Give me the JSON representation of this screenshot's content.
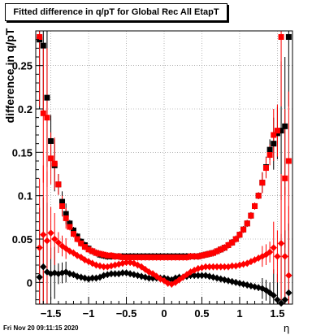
{
  "timestamp": "Fri Nov 20 09:11:15 2020",
  "chart_data": {
    "type": "scatter",
    "title": "Fitted difference in q/pT for Global Rec All EtapT",
    "xlabel": "η",
    "ylabel": "difference in q/pT",
    "xlim": [
      -1.7,
      1.7
    ],
    "ylim": [
      -0.025,
      0.29
    ],
    "xticks": [
      -1.5,
      -1,
      -0.5,
      0,
      0.5,
      1,
      1.5
    ],
    "xtick_labels": [
      "−1.5",
      "−1",
      "−0.5",
      "0",
      "0.5",
      "1",
      "1.5"
    ],
    "yticks": [
      0,
      0.05,
      0.1,
      0.15,
      0.2,
      0.25
    ],
    "ytick_labels": [
      "0",
      "0.05",
      "0.1",
      "0.15",
      "0.2",
      "0.25"
    ],
    "grid": true,
    "colors": {
      "black": "#000000",
      "red": "#ff0000"
    },
    "series": [
      {
        "marker": "square",
        "color": "#000000",
        "x": [
          -1.65,
          -1.6,
          -1.55,
          -1.5,
          -1.45,
          -1.4,
          -1.35,
          -1.3,
          -1.25,
          -1.2,
          -1.15,
          -1.1,
          -1.05,
          -1.0,
          -0.95,
          -0.9,
          -0.85,
          -0.8,
          -0.75,
          -0.7,
          -0.65,
          -0.6,
          -0.55,
          -0.5,
          -0.45,
          -0.4,
          -0.35,
          -0.3,
          -0.25,
          -0.2,
          -0.15,
          -0.1,
          -0.05,
          0.0,
          0.05,
          0.1,
          0.15,
          0.2,
          0.25,
          0.3,
          0.35,
          0.4,
          0.45,
          0.5,
          0.55,
          0.6,
          0.65,
          0.7,
          0.75,
          0.8,
          0.85,
          0.9,
          0.95,
          1.0,
          1.05,
          1.1,
          1.15,
          1.2,
          1.25,
          1.3,
          1.35,
          1.4,
          1.45,
          1.5,
          1.55,
          1.6,
          1.65
        ],
        "y": [
          0.28,
          0.273,
          0.213,
          0.163,
          0.135,
          0.113,
          0.093,
          0.079,
          0.068,
          0.06,
          0.053,
          0.047,
          0.043,
          0.039,
          0.036,
          0.034,
          0.032,
          0.031,
          0.03,
          0.03,
          0.03,
          0.03,
          0.03,
          0.03,
          0.03,
          0.03,
          0.03,
          0.03,
          0.03,
          0.03,
          0.03,
          0.03,
          0.03,
          0.03,
          0.03,
          0.03,
          0.03,
          0.03,
          0.03,
          0.03,
          0.03,
          0.03,
          0.03,
          0.031,
          0.032,
          0.033,
          0.034,
          0.036,
          0.038,
          0.04,
          0.043,
          0.046,
          0.05,
          0.055,
          0.061,
          0.068,
          0.077,
          0.088,
          0.1,
          0.115,
          0.133,
          0.153,
          0.16,
          0.172,
          0.175,
          0.18,
          0.283
        ]
      },
      {
        "marker": "square",
        "color": "#ff0000",
        "x": [
          -1.65,
          -1.6,
          -1.55,
          -1.5,
          -1.45,
          -1.4,
          -1.35,
          -1.3,
          -1.25,
          -1.2,
          -1.15,
          -1.1,
          -1.05,
          -1.0,
          -0.95,
          -0.9,
          -0.85,
          -0.8,
          -0.75,
          -0.7,
          -0.65,
          -0.6,
          -0.55,
          -0.5,
          -0.45,
          -0.4,
          -0.35,
          -0.3,
          -0.25,
          -0.2,
          -0.15,
          -0.1,
          -0.05,
          0.0,
          0.05,
          0.1,
          0.15,
          0.2,
          0.25,
          0.3,
          0.35,
          0.4,
          0.45,
          0.5,
          0.55,
          0.6,
          0.65,
          0.7,
          0.75,
          0.8,
          0.85,
          0.9,
          0.95,
          1.0,
          1.05,
          1.1,
          1.15,
          1.2,
          1.25,
          1.3,
          1.35,
          1.4,
          1.45,
          1.5,
          1.55,
          1.6,
          1.65
        ],
        "y": [
          0.283,
          0.195,
          0.19,
          0.143,
          0.137,
          0.113,
          0.088,
          0.074,
          0.064,
          0.056,
          0.05,
          0.045,
          0.041,
          0.038,
          0.036,
          0.034,
          0.033,
          0.032,
          0.031,
          0.031,
          0.03,
          0.03,
          0.029,
          0.029,
          0.029,
          0.029,
          0.029,
          0.029,
          0.029,
          0.029,
          0.029,
          0.029,
          0.029,
          0.029,
          0.029,
          0.029,
          0.029,
          0.029,
          0.029,
          0.029,
          0.03,
          0.03,
          0.03,
          0.031,
          0.032,
          0.033,
          0.034,
          0.036,
          0.038,
          0.04,
          0.043,
          0.046,
          0.05,
          0.055,
          0.061,
          0.068,
          0.077,
          0.088,
          0.1,
          0.115,
          0.132,
          0.147,
          0.17,
          0.175,
          0.283,
          0.12,
          0.14
        ]
      },
      {
        "marker": "diamond",
        "color": "#000000",
        "x": [
          -1.65,
          -1.6,
          -1.55,
          -1.5,
          -1.45,
          -1.4,
          -1.35,
          -1.3,
          -1.25,
          -1.2,
          -1.15,
          -1.1,
          -1.05,
          -1.0,
          -0.95,
          -0.9,
          -0.85,
          -0.8,
          -0.75,
          -0.7,
          -0.65,
          -0.6,
          -0.55,
          -0.5,
          -0.45,
          -0.4,
          -0.35,
          -0.3,
          -0.25,
          -0.2,
          -0.15,
          -0.1,
          -0.05,
          0.0,
          0.05,
          0.1,
          0.15,
          0.2,
          0.25,
          0.3,
          0.35,
          0.4,
          0.45,
          0.5,
          0.55,
          0.6,
          0.65,
          0.7,
          0.75,
          0.8,
          0.85,
          0.9,
          0.95,
          1.0,
          1.05,
          1.1,
          1.15,
          1.2,
          1.25,
          1.3,
          1.35,
          1.4,
          1.45,
          1.5,
          1.55,
          1.6,
          1.65
        ],
        "y": [
          0.006,
          0.018,
          0.012,
          0.01,
          0.011,
          0.01,
          0.011,
          0.012,
          0.01,
          0.009,
          0.007,
          0.006,
          0.005,
          0.004,
          0.005,
          0.005,
          0.006,
          0.008,
          0.009,
          0.01,
          0.01,
          0.01,
          0.011,
          0.011,
          0.01,
          0.009,
          0.008,
          0.007,
          0.006,
          0.005,
          0.005,
          0.005,
          0.005,
          0.005,
          0.004,
          0.003,
          0.005,
          0.006,
          0.006,
          0.007,
          0.008,
          0.008,
          0.008,
          0.008,
          0.008,
          0.007,
          0.006,
          0.005,
          0.004,
          0.003,
          0.002,
          0.001,
          0.0,
          -0.001,
          -0.002,
          -0.003,
          -0.004,
          -0.005,
          -0.006,
          -0.007,
          -0.009,
          -0.012,
          -0.015,
          -0.02,
          -0.024,
          -0.02,
          -0.012
        ]
      },
      {
        "marker": "diamond",
        "color": "#ff0000",
        "x": [
          -1.65,
          -1.6,
          -1.55,
          -1.5,
          -1.45,
          -1.4,
          -1.35,
          -1.3,
          -1.25,
          -1.2,
          -1.15,
          -1.1,
          -1.05,
          -1.0,
          -0.95,
          -0.9,
          -0.85,
          -0.8,
          -0.75,
          -0.7,
          -0.65,
          -0.6,
          -0.55,
          -0.5,
          -0.45,
          -0.4,
          -0.35,
          -0.3,
          -0.25,
          -0.2,
          -0.15,
          -0.1,
          -0.05,
          0.0,
          0.05,
          0.1,
          0.15,
          0.2,
          0.25,
          0.3,
          0.35,
          0.4,
          0.45,
          0.5,
          0.55,
          0.6,
          0.65,
          0.7,
          0.75,
          0.8,
          0.85,
          0.9,
          0.95,
          1.0,
          1.05,
          1.1,
          1.15,
          1.2,
          1.25,
          1.3,
          1.35,
          1.4,
          1.45,
          1.5,
          1.55,
          1.6,
          1.65
        ],
        "y": [
          0.04,
          0.055,
          0.048,
          0.057,
          0.05,
          0.046,
          0.042,
          0.039,
          0.036,
          0.034,
          0.031,
          0.029,
          0.026,
          0.024,
          0.022,
          0.02,
          0.019,
          0.018,
          0.018,
          0.019,
          0.02,
          0.021,
          0.022,
          0.023,
          0.023,
          0.022,
          0.02,
          0.018,
          0.015,
          0.012,
          0.01,
          0.007,
          0.004,
          0.002,
          -0.001,
          -0.002,
          0.0,
          0.003,
          0.006,
          0.009,
          0.012,
          0.014,
          0.016,
          0.017,
          0.018,
          0.018,
          0.018,
          0.018,
          0.018,
          0.018,
          0.018,
          0.019,
          0.019,
          0.02,
          0.021,
          0.022,
          0.024,
          0.026,
          0.028,
          0.03,
          0.032,
          0.035,
          0.04,
          0.03,
          0.045,
          0.03,
          0.008
        ]
      }
    ]
  }
}
